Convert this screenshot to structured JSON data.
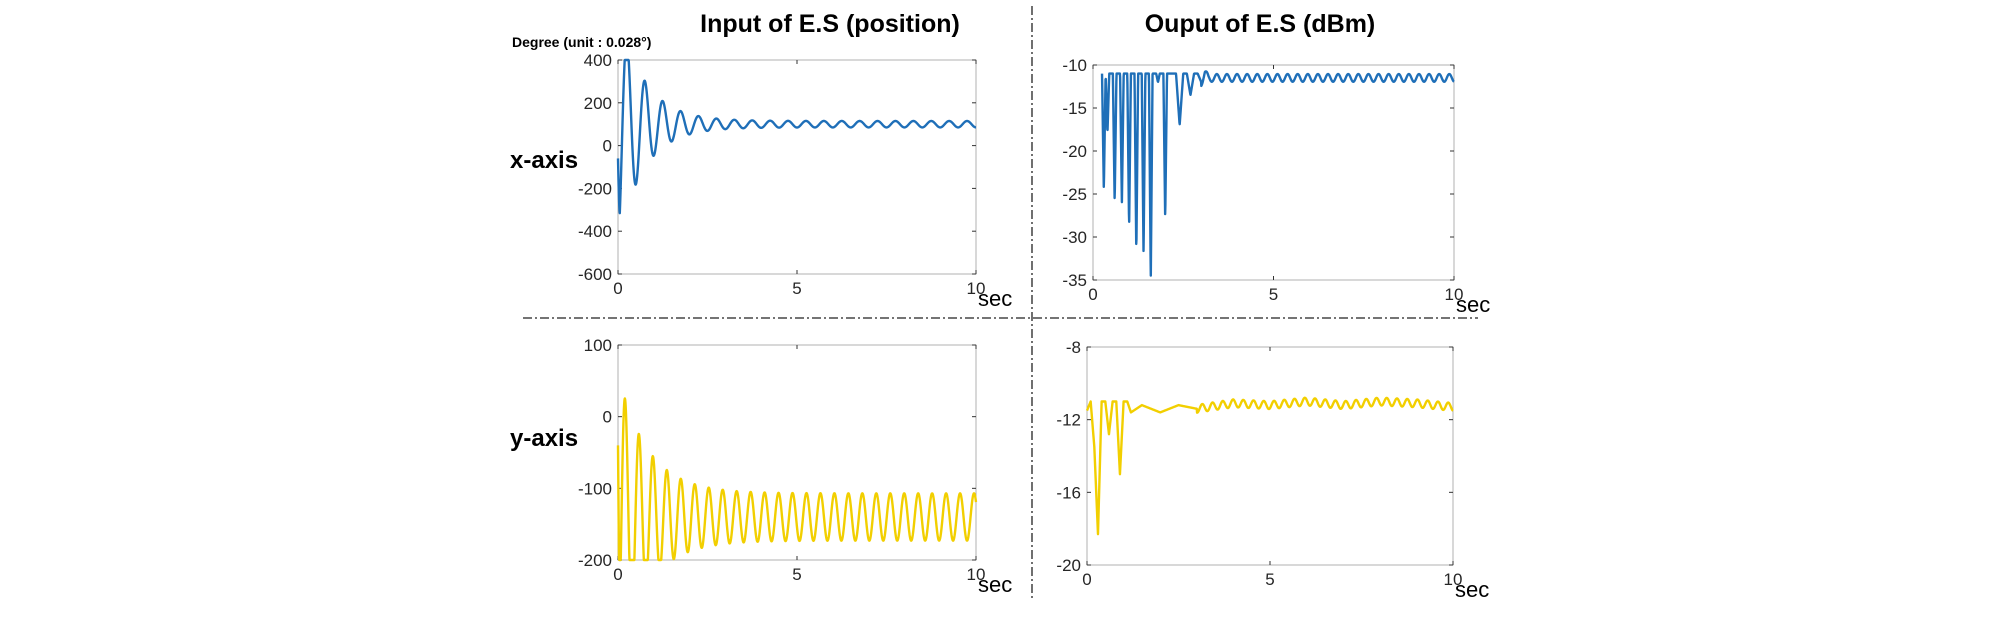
{
  "figure": {
    "col_titles": [
      "Input of E.S (position)",
      "Ouput of E.S (dBm)"
    ],
    "row_labels": [
      "x-axis",
      "y-axis"
    ],
    "unit_label": "Degree (unit : 0.028°)"
  },
  "chart_data": [
    {
      "type": "line",
      "row": "x-axis",
      "column": "Input of E.S (position)",
      "xlabel": "sec",
      "ylabel": "Degree (unit : 0.028°)",
      "xlim": [
        0,
        10
      ],
      "ylim": [
        -600,
        400
      ],
      "xticks": [
        0,
        5,
        10
      ],
      "yticks": [
        400,
        200,
        0,
        -200,
        -400,
        -600
      ],
      "grid": false,
      "color": "#1f6fb8",
      "model": {
        "kind": "damped_oscillation",
        "start": -60,
        "offset": 100,
        "amplitude": 550,
        "decay": 1.4,
        "residual_amplitude": 15,
        "period": 0.5
      },
      "series": [
        {
          "x": [
            0,
            0.1,
            0.3,
            0.55,
            0.8,
            1.05,
            1.3,
            1.55,
            1.8,
            2.05,
            2.3,
            2.8,
            3.3,
            5,
            7.5,
            10
          ],
          "y": [
            -60,
            -440,
            350,
            -300,
            225,
            -170,
            160,
            -60,
            135,
            0,
            120,
            80,
            112,
            90,
            112,
            110
          ]
        }
      ]
    },
    {
      "type": "line",
      "row": "x-axis",
      "column": "Ouput of E.S (dBm)",
      "xlabel": "sec",
      "xlim": [
        0,
        10
      ],
      "ylim": [
        -35,
        -10
      ],
      "xticks": [
        0,
        5,
        10
      ],
      "yticks": [
        -10,
        -15,
        -20,
        -25,
        -30,
        -35
      ],
      "grid": false,
      "color": "#1f6fb8",
      "series": [
        {
          "x": [
            0.25,
            0.3,
            0.35,
            0.4,
            0.45,
            0.55,
            0.6,
            0.65,
            0.75,
            0.8,
            0.85,
            0.95,
            1.0,
            1.05,
            1.15,
            1.2,
            1.25,
            1.35,
            1.4,
            1.45,
            1.55,
            1.6,
            1.65,
            1.75,
            1.8,
            1.85,
            1.95,
            2.0,
            2.05,
            2.15,
            2.2,
            2.3,
            2.4,
            2.5,
            2.6,
            2.7,
            2.8,
            2.9,
            3.0,
            3.1,
            3.2,
            3.5,
            4,
            5,
            6,
            7,
            8,
            9,
            10
          ],
          "y": [
            -11,
            -24.5,
            -11,
            -18,
            -11,
            -11,
            -26,
            -11,
            -11,
            -26,
            -11,
            -11,
            -29,
            -11,
            -11,
            -32,
            -11,
            -11,
            -32,
            -11,
            -11,
            -35,
            -11,
            -11,
            -12,
            -11,
            -11,
            -28,
            -11,
            -11,
            -11,
            -11,
            -17,
            -11,
            -11,
            -13.5,
            -11,
            -11,
            -12,
            -11,
            -11.5,
            -11.5,
            -11.5,
            -11.5,
            -11.5,
            -11.5,
            -11.5,
            -11.5,
            -11.5
          ]
        }
      ]
    },
    {
      "type": "line",
      "row": "y-axis",
      "column": "Input of E.S (position)",
      "xlabel": "sec",
      "xlim": [
        0,
        10
      ],
      "ylim": [
        -200,
        100
      ],
      "xticks": [
        0,
        5,
        10
      ],
      "yticks": [
        100,
        0,
        -100,
        -200
      ],
      "grid": false,
      "color": "#f2cf00",
      "model": {
        "kind": "damped_oscillation",
        "start": -40,
        "offset": -140,
        "amplitude": 200,
        "decay": 1.2,
        "residual_amplitude": 33,
        "period": 0.39
      },
      "series": [
        {
          "x": [
            0,
            0.1,
            0.3,
            0.55,
            0.8,
            1.05,
            1.3,
            1.55,
            1.8,
            2.05,
            2.3,
            3,
            5,
            7.5,
            10
          ],
          "y": [
            -40,
            -190,
            75,
            -185,
            -20,
            -180,
            -85,
            -175,
            -95,
            -175,
            -100,
            -105,
            -110,
            -105,
            -100
          ]
        }
      ]
    },
    {
      "type": "line",
      "row": "y-axis",
      "column": "Ouput of E.S (dBm)",
      "xlabel": "sec",
      "xlim": [
        0,
        10
      ],
      "ylim": [
        -20,
        -8
      ],
      "xticks": [
        0,
        5,
        10
      ],
      "yticks": [
        -8,
        -12,
        -16,
        -20
      ],
      "grid": false,
      "color": "#f2cf00",
      "series": [
        {
          "x": [
            0,
            0.1,
            0.2,
            0.3,
            0.4,
            0.5,
            0.6,
            0.7,
            0.8,
            0.9,
            1.0,
            1.1,
            1.2,
            1.5,
            2,
            2.5,
            3,
            4,
            5,
            6,
            7,
            8,
            9,
            10
          ],
          "y": [
            -11.5,
            -11,
            -13.5,
            -18.3,
            -11,
            -11,
            -12.8,
            -11,
            -11,
            -15,
            -11,
            -11,
            -11.6,
            -11.2,
            -11.6,
            -11.2,
            -11.4,
            -11.1,
            -11.2,
            -11.0,
            -11.2,
            -11.0,
            -11.1,
            -11.3
          ]
        }
      ]
    }
  ]
}
